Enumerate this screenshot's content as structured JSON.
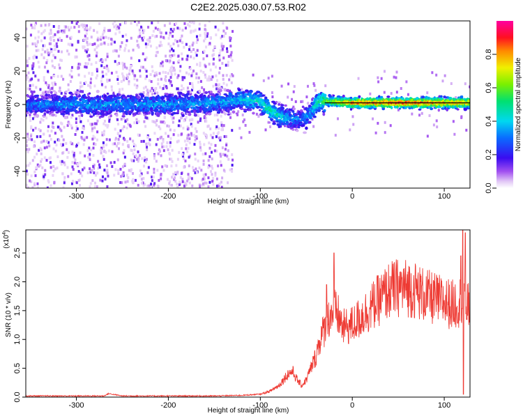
{
  "figure": {
    "title": "C2E2.2025.030.07.53.R02"
  },
  "colors": {
    "snr_line": "#ee3a33",
    "ridge": "#0a0a0a",
    "axis": "#000000"
  },
  "colorbar": {
    "label": "Normalized spectral amplitude",
    "ticks": [
      "0.0",
      "0.2",
      "0.4",
      "0.6",
      "0.8"
    ],
    "tick_values": [
      0.0,
      0.2,
      0.4,
      0.6,
      0.8
    ],
    "colormap": "rainbow (white-violet-blue-cyan-green-yellow-red-magenta)"
  },
  "chart_data": [
    {
      "type": "heatmap",
      "title": "C2E2.2025.030.07.53.R02",
      "xlabel": "Height of straight line (km)",
      "ylabel": "Frequency (Hz)",
      "xlim": [
        -355,
        128
      ],
      "ylim": [
        -50,
        50
      ],
      "xticks": [
        -300,
        -200,
        -100,
        0,
        100
      ],
      "xtick_labels": [
        "-300",
        "-200",
        "-100",
        "0",
        "100"
      ],
      "yticks": [
        -40,
        -20,
        0,
        20,
        40
      ],
      "ytick_labels": [
        "-40",
        "-20",
        "0",
        "20",
        "40"
      ],
      "value_range": [
        0,
        1
      ],
      "ridge_line": {
        "x": [
          -30,
          128
        ],
        "y": [
          1,
          1
        ]
      },
      "ridge_profile": {
        "x": [
          -350,
          -300,
          -250,
          -200,
          -150,
          -120,
          -100,
          -90,
          -80,
          -70,
          -60,
          -50,
          -45,
          -40,
          -35,
          -30,
          0,
          50,
          100,
          128
        ],
        "freq": [
          0,
          0,
          0,
          0,
          1,
          3,
          2,
          -3,
          -6,
          -8,
          -9,
          -8,
          -5,
          0,
          2,
          2,
          1,
          1,
          1,
          1
        ],
        "amplitude": [
          0.3,
          0.35,
          0.35,
          0.35,
          0.35,
          0.4,
          0.45,
          0.5,
          0.45,
          0.35,
          0.3,
          0.35,
          0.35,
          0.45,
          0.5,
          0.6,
          0.85,
          0.9,
          0.85,
          0.8
        ]
      },
      "scatter_region": {
        "x": [
          -355,
          -130
        ],
        "ylim": [
          -50,
          50
        ]
      },
      "grid": false
    },
    {
      "type": "line",
      "series": [
        {
          "values_description": "SNR profile"
        }
      ],
      "xlabel": "Height of straight line (km)",
      "ylabel": "SNR (10 * v/v)",
      "multiplier_label": "(x10",
      "multiplier_exp": "4",
      "multiplier_close": ")",
      "xlim": [
        -355,
        128
      ],
      "ylim": [
        0,
        2.9
      ],
      "xticks": [
        -300,
        -200,
        -100,
        0,
        100
      ],
      "xtick_labels": [
        "-300",
        "-200",
        "-100",
        "0",
        "100"
      ],
      "yticks": [
        0.0,
        0.5,
        1.0,
        1.5,
        2.0,
        2.5
      ],
      "ytick_labels": [
        "0.0",
        "0.5",
        "1.0",
        "1.5",
        "2.0",
        "2.5"
      ],
      "x": [
        -355,
        -300,
        -270,
        -265,
        -250,
        -200,
        -150,
        -120,
        -100,
        -90,
        -80,
        -75,
        -70,
        -65,
        -60,
        -55,
        -50,
        -40,
        -35,
        -30,
        -25,
        -20,
        -15,
        -10,
        0,
        10,
        20,
        30,
        40,
        50,
        60,
        70,
        80,
        90,
        100,
        110,
        115,
        120,
        125,
        128
      ],
      "y": [
        0.02,
        0.02,
        0.02,
        0.06,
        0.02,
        0.02,
        0.02,
        0.03,
        0.05,
        0.1,
        0.2,
        0.3,
        0.4,
        0.45,
        0.3,
        0.2,
        0.3,
        0.7,
        1.0,
        1.2,
        1.4,
        1.5,
        1.4,
        1.2,
        1.25,
        1.4,
        1.55,
        1.7,
        1.85,
        1.9,
        1.9,
        1.85,
        1.75,
        1.7,
        1.65,
        1.6,
        1.65,
        1.7,
        1.6,
        1.5
      ],
      "spikes": [
        {
          "x": -20,
          "y": 2.5
        },
        {
          "x": -28,
          "y": 1.95
        },
        {
          "x": 118,
          "y": 2.45
        },
        {
          "x": 120,
          "y": 2.95
        },
        {
          "x": 121,
          "y": 0.05
        },
        {
          "x": 123,
          "y": 2.85
        }
      ],
      "grid": false
    }
  ]
}
